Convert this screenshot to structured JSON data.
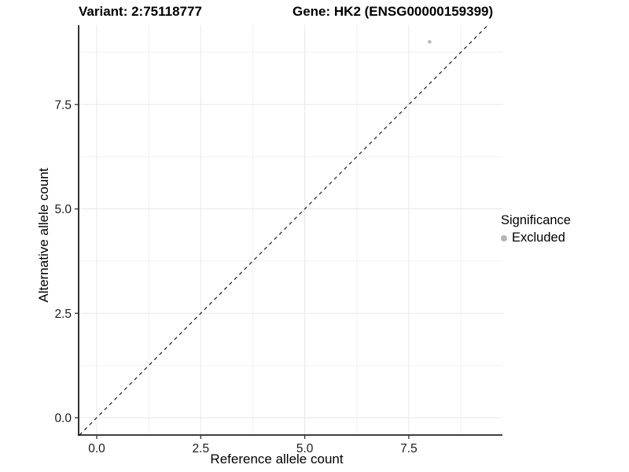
{
  "chart_data": {
    "type": "scatter",
    "title_left": "Variant: 2:75118777",
    "title_right": "Gene: HK2 (ENSG00000159399)",
    "xlabel": "Reference allele count",
    "ylabel": "Alternative allele count",
    "xlim": [
      -0.435,
      9.75
    ],
    "ylim": [
      -0.415,
      9.4
    ],
    "x_ticks": [
      0.0,
      2.5,
      5.0,
      7.5
    ],
    "y_ticks": [
      0.0,
      2.5,
      5.0,
      7.5
    ],
    "x_tick_labels": [
      "0.0",
      "2.5",
      "5.0",
      "7.5"
    ],
    "y_tick_labels": [
      "0.0",
      "2.5",
      "5.0",
      "7.5"
    ],
    "minor_gridlines": [
      1.25,
      3.75,
      6.25,
      8.75
    ],
    "grid": true,
    "series": [
      {
        "name": "Excluded",
        "color": "#bcbcbc",
        "points": [
          {
            "x": 8,
            "y": 9
          }
        ]
      }
    ],
    "reference_line": {
      "type": "identity",
      "style": "dashed",
      "color": "#1a1a1a"
    },
    "legend": {
      "position": "right",
      "title": "Significance",
      "entries": [
        {
          "label": "Excluded",
          "color": "#b5b5b5"
        }
      ]
    },
    "colors": {
      "axis_line": "#000000",
      "tick_mark": "#333333",
      "tick_text": "#1a1a1a",
      "grid_major": "#e7e7e7",
      "grid_minor": "#f2f2f2",
      "background": "#ffffff"
    }
  }
}
